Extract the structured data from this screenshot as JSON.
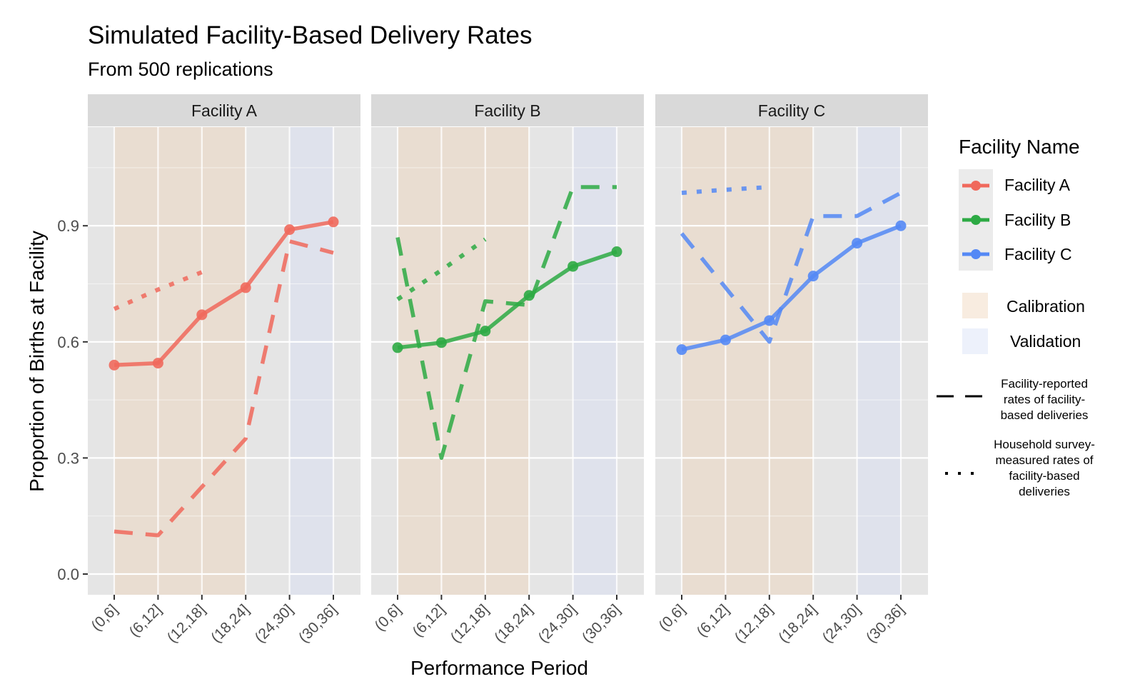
{
  "header": {
    "title": "Simulated Facility-Based Delivery Rates",
    "subtitle": "From 500 replications"
  },
  "legend": {
    "title": "Facility Name",
    "facilities": [
      {
        "label": "Facility A",
        "color": "#F0695C"
      },
      {
        "label": "Facility B",
        "color": "#2DAA44"
      },
      {
        "label": "Facility C",
        "color": "#5488F5"
      }
    ],
    "regions": [
      {
        "label": "Calibration",
        "color": "#F8ECE0"
      },
      {
        "label": "Validation",
        "color": "#EDF1FB"
      }
    ],
    "linetypes": [
      {
        "style": "dashed",
        "label_lines": [
          "Facility-reported",
          "rates of facility-",
          "based deliveries"
        ]
      },
      {
        "style": "dotted",
        "label_lines": [
          "Household survey-",
          "measured rates of",
          "facility-based",
          "deliveries"
        ]
      }
    ]
  },
  "chart_data": {
    "type": "line",
    "title": "Simulated Facility-Based Delivery Rates",
    "subtitle": "From 500 replications",
    "xlabel": "Performance Period",
    "ylabel": "Proportion of Births at Facility",
    "categories": [
      "(0,6]",
      "(6,12]",
      "(12,18]",
      "(18,24]",
      "(24,30]",
      "(30,36]"
    ],
    "ylim": [
      -0.05,
      1.16
    ],
    "yticks": [
      0.0,
      0.3,
      0.6,
      0.9
    ],
    "ytick_labels": [
      "0.0",
      "0.3",
      "0.6",
      "0.9"
    ],
    "grid": true,
    "legend_position": "right",
    "shading": {
      "calibration": {
        "from": "(0,6]",
        "to": "(18,24]",
        "color": "#E9DDD1"
      },
      "validation": {
        "from": "(24,30]",
        "to": "(30,36]",
        "color": "#DFE2EC"
      }
    },
    "panels": [
      {
        "name": "Facility A",
        "color": "#F0695C",
        "series": [
          {
            "name": "Simulated",
            "style": "solid",
            "markers": true,
            "values": [
              0.54,
              0.545,
              0.67,
              0.74,
              0.89,
              0.91
            ]
          },
          {
            "name": "Facility-reported",
            "style": "dashed",
            "markers": false,
            "values": [
              0.11,
              0.1,
              0.225,
              0.35,
              0.86,
              0.83
            ]
          },
          {
            "name": "Household survey-measured",
            "style": "dotted",
            "markers": false,
            "values": [
              0.685,
              0.735,
              0.78,
              null,
              null,
              null
            ]
          }
        ]
      },
      {
        "name": "Facility B",
        "color": "#2DAA44",
        "series": [
          {
            "name": "Simulated",
            "style": "solid",
            "markers": true,
            "values": [
              0.585,
              0.598,
              0.628,
              0.72,
              0.795,
              0.833
            ]
          },
          {
            "name": "Facility-reported",
            "style": "dashed",
            "markers": false,
            "values": [
              0.87,
              0.3,
              0.705,
              0.695,
              1.0,
              1.0
            ]
          },
          {
            "name": "Household survey-measured",
            "style": "dotted",
            "markers": false,
            "values": [
              0.71,
              0.785,
              0.865,
              null,
              null,
              null
            ]
          }
        ]
      },
      {
        "name": "Facility C",
        "color": "#5488F5",
        "series": [
          {
            "name": "Simulated",
            "style": "solid",
            "markers": true,
            "values": [
              0.58,
              0.605,
              0.655,
              0.77,
              0.855,
              0.9
            ]
          },
          {
            "name": "Facility-reported",
            "style": "dashed",
            "markers": false,
            "values": [
              0.88,
              0.74,
              0.6,
              0.925,
              0.925,
              0.985
            ]
          },
          {
            "name": "Household survey-measured",
            "style": "dotted",
            "markers": false,
            "values": [
              0.985,
              0.993,
              1.0,
              null,
              null,
              null
            ]
          }
        ]
      }
    ]
  }
}
